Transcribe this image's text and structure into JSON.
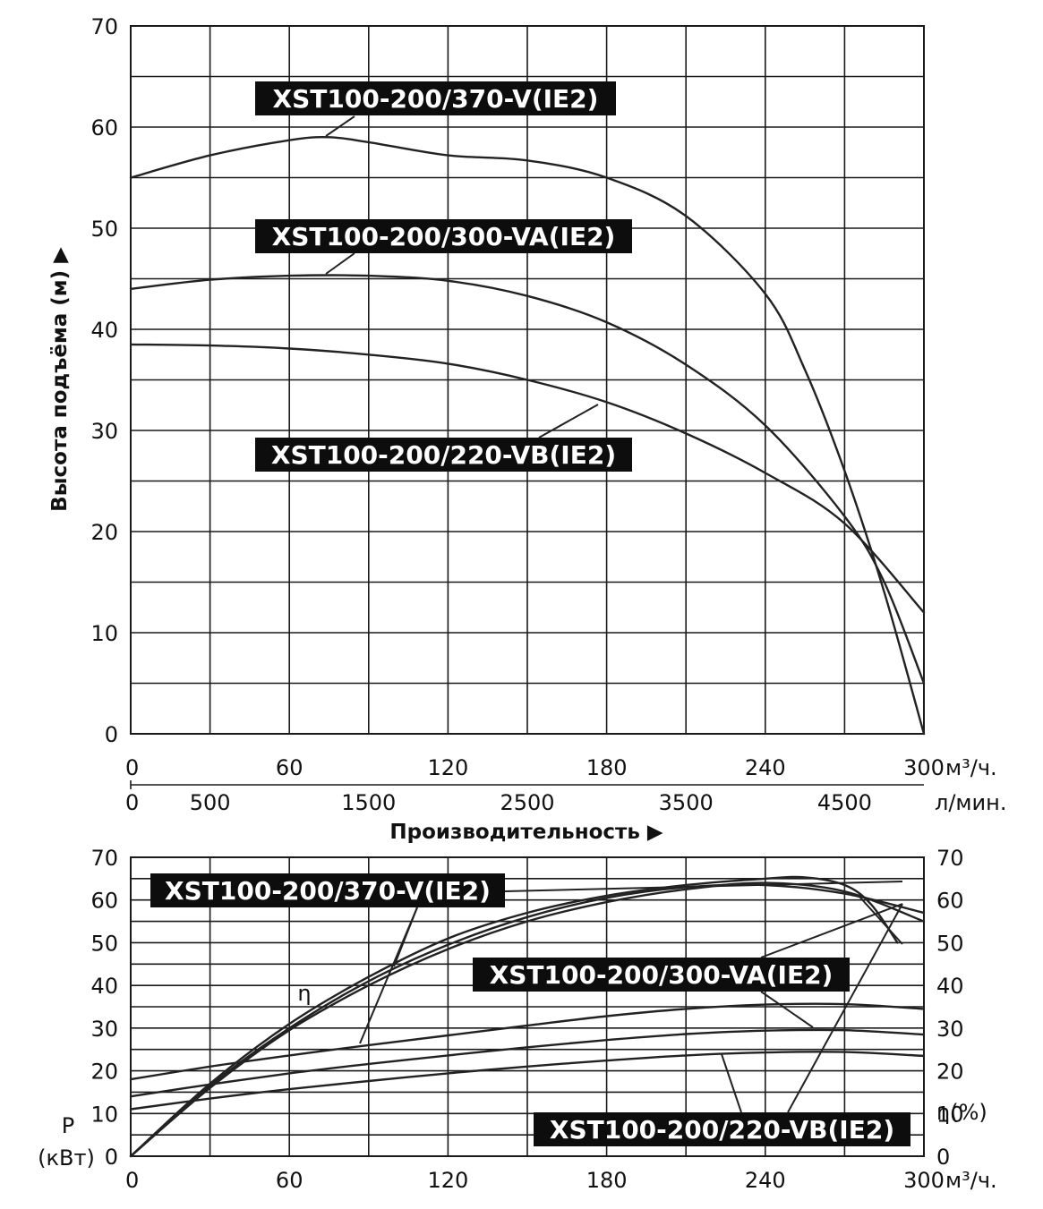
{
  "chart_data": [
    {
      "type": "line",
      "ylabel": "Высота подъёма (м) ▶",
      "xlabel": "Производительность ▶",
      "x_unit_primary": "м³/ч.",
      "x_unit_secondary": "л/мин.",
      "xlim": [
        0,
        300
      ],
      "ylim": [
        0,
        70
      ],
      "x_ticks": [
        "0",
        "60",
        "120",
        "180",
        "240",
        "300"
      ],
      "x_ticks_secondary": [
        "0",
        "500",
        "1500",
        "2500",
        "3500",
        "4500"
      ],
      "x_ticks_secondary_values": [
        0,
        500,
        1500,
        2500,
        3500,
        4500
      ],
      "y_ticks": [
        "0",
        "10",
        "20",
        "30",
        "40",
        "50",
        "60",
        "70"
      ],
      "grid": true,
      "series": [
        {
          "name": "XST100-200/370-V(IE2)",
          "x": [
            0,
            30,
            60,
            75,
            90,
            120,
            150,
            180,
            210,
            240,
            255,
            270,
            285,
            300
          ],
          "y": [
            55,
            57.2,
            58.7,
            59,
            58.5,
            57.2,
            56.7,
            55,
            51.2,
            43.5,
            36,
            26,
            14,
            0
          ]
        },
        {
          "name": "XST100-200/300-VA(IE2)",
          "x": [
            0,
            30,
            60,
            90,
            120,
            150,
            180,
            210,
            240,
            270,
            285,
            300
          ],
          "y": [
            44,
            44.9,
            45.3,
            45.3,
            44.8,
            43.3,
            40.7,
            36.5,
            30.5,
            21.5,
            15,
            5
          ]
        },
        {
          "name": "XST100-200/220-VB(IE2)",
          "x": [
            0,
            30,
            60,
            90,
            120,
            150,
            180,
            210,
            240,
            270,
            300
          ],
          "y": [
            38.5,
            38.4,
            38.1,
            37.5,
            36.6,
            35,
            32.8,
            29.7,
            25.8,
            20.8,
            12
          ]
        }
      ]
    },
    {
      "type": "line",
      "xlabel": "",
      "ylabel_left": "P (кВт)",
      "ylabel_right": "η(%)",
      "x_unit": "м³/ч.",
      "xlim": [
        0,
        300
      ],
      "ylim": [
        0,
        70
      ],
      "x_ticks": [
        "0",
        "60",
        "120",
        "180",
        "240",
        "300"
      ],
      "y_ticks": [
        "0",
        "10",
        "20",
        "30",
        "40",
        "50",
        "60",
        "70"
      ],
      "eta_label": "η",
      "grid": true,
      "series": [
        {
          "name": "XST100-200/370-V(IE2)",
          "quantity": "η(%)",
          "x": [
            0,
            30,
            60,
            90,
            120,
            150,
            180,
            210,
            240,
            255,
            270,
            280,
            290
          ],
          "y": [
            0,
            17,
            31,
            42,
            51,
            57,
            61,
            63.5,
            65,
            65.3,
            63.5,
            59,
            50
          ]
        },
        {
          "name": "XST100-200/300-VA(IE2)",
          "quantity": "η(%)",
          "x": [
            0,
            30,
            60,
            90,
            120,
            150,
            180,
            210,
            240,
            270,
            300
          ],
          "y": [
            0,
            16.5,
            30,
            41,
            49.5,
            56,
            60.5,
            63,
            63.5,
            61.5,
            57
          ]
        },
        {
          "name": "XST100-200/220-VB(IE2)",
          "quantity": "η(%)",
          "x": [
            0,
            30,
            60,
            90,
            120,
            150,
            180,
            210,
            240,
            270,
            300
          ],
          "y": [
            0,
            16,
            29.5,
            40,
            48.5,
            55,
            59.5,
            62.5,
            64,
            62,
            55
          ]
        },
        {
          "name": "XST100-200/370-V(IE2)",
          "quantity": "P (кВт)",
          "x": [
            0,
            30,
            60,
            90,
            120,
            150,
            180,
            210,
            240,
            270,
            300
          ],
          "y": [
            18,
            21,
            23.6,
            26,
            28.3,
            30.6,
            32.8,
            34.5,
            35.5,
            35.6,
            34.5
          ]
        },
        {
          "name": "XST100-200/300-VA(IE2)",
          "quantity": "P (кВт)",
          "x": [
            0,
            30,
            60,
            90,
            120,
            150,
            180,
            210,
            240,
            270,
            300
          ],
          "y": [
            14,
            16.8,
            19.4,
            21.6,
            23.6,
            25.5,
            27.2,
            28.6,
            29.4,
            29.5,
            28.5
          ]
        },
        {
          "name": "XST100-200/220-VB(IE2)",
          "quantity": "P (кВт)",
          "x": [
            0,
            30,
            60,
            90,
            120,
            150,
            180,
            210,
            240,
            270,
            300
          ],
          "y": [
            11,
            13.5,
            15.7,
            17.6,
            19.4,
            21,
            22.4,
            23.6,
            24.3,
            24.4,
            23.5
          ]
        }
      ]
    }
  ]
}
